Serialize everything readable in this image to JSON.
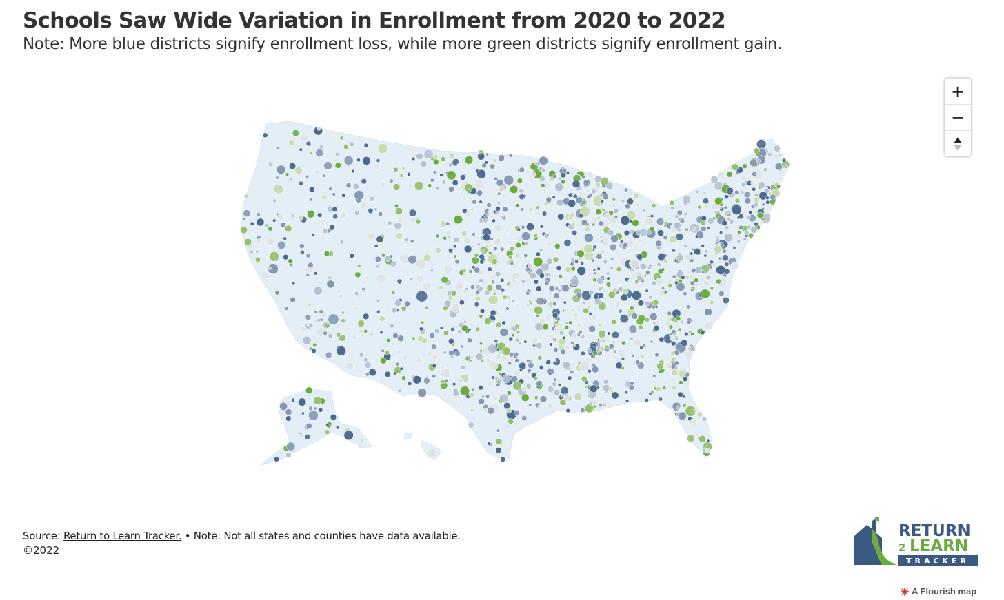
{
  "header": {
    "title": "Schools Saw Wide Variation in Enrollment from 2020 to 2022",
    "subtitle": "Note: More blue districts signify enrollment loss, while more green districts signify enrollment gain."
  },
  "controls": {
    "zoom_in": "+",
    "zoom_out": "−",
    "reset": "▲"
  },
  "colors": {
    "land": "#e4eef7",
    "loss_dark": "#4d6a8e",
    "loss_mid": "#8698b3",
    "loss_light": "#b6c1d2",
    "neutral": "#dfe3e4",
    "gain_light": "#c8dcb0",
    "gain_mid": "#93c06a",
    "gain_dark": "#6aac3f"
  },
  "footer": {
    "source_prefix": "Source: ",
    "source_link": "Return to Learn Tracker.",
    "source_note": " • Note: Not all states and counties have data available.",
    "copyright": "©2022"
  },
  "logo": {
    "line1": "RETURN",
    "line2_num": "2",
    "line2": "LEARN",
    "line3": "TRACKER"
  },
  "attribution": "A Flourish map"
}
